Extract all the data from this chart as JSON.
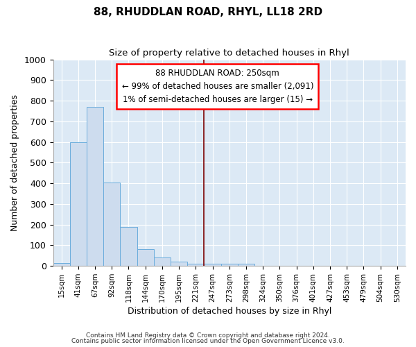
{
  "title": "88, RHUDDLAN ROAD, RHYL, LL18 2RD",
  "subtitle": "Size of property relative to detached houses in Rhyl",
  "xlabel": "Distribution of detached houses by size in Rhyl",
  "ylabel": "Number of detached properties",
  "bar_color": "#cddcee",
  "bar_edge_color": "#6aacdc",
  "background_color": "#dce9f5",
  "categories": [
    "15sqm",
    "41sqm",
    "67sqm",
    "92sqm",
    "118sqm",
    "144sqm",
    "170sqm",
    "195sqm",
    "221sqm",
    "247sqm",
    "273sqm",
    "298sqm",
    "324sqm",
    "350sqm",
    "376sqm",
    "401sqm",
    "427sqm",
    "453sqm",
    "479sqm",
    "504sqm",
    "530sqm"
  ],
  "values": [
    15,
    600,
    770,
    405,
    190,
    80,
    40,
    20,
    12,
    10,
    12,
    10,
    0,
    0,
    0,
    0,
    0,
    0,
    0,
    0,
    0
  ],
  "ylim": [
    0,
    1000
  ],
  "yticks": [
    0,
    100,
    200,
    300,
    400,
    500,
    600,
    700,
    800,
    900,
    1000
  ],
  "vline_pos": 8.5,
  "vline_color": "#7b0000",
  "annotation_title": "88 RHUDDLAN ROAD: 250sqm",
  "annotation_line1": "← 99% of detached houses are smaller (2,091)",
  "annotation_line2": "1% of semi-detached houses are larger (15) →",
  "footer1": "Contains HM Land Registry data © Crown copyright and database right 2024.",
  "footer2": "Contains public sector information licensed under the Open Government Licence v3.0."
}
